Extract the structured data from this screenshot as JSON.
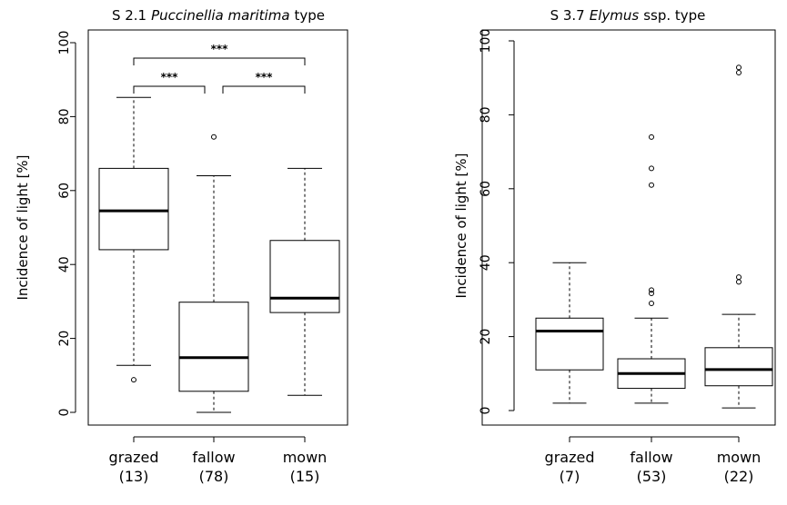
{
  "chart_data": [
    {
      "type": "box",
      "title": {
        "prefix": "S 2.1",
        "taxon": "Puccinellia maritima",
        "suffix": "type"
      },
      "ylabel": "Incidence of light [%]",
      "ylim": [
        0,
        100
      ],
      "yticks": [
        "0",
        "20",
        "40",
        "60",
        "80",
        "100"
      ],
      "categories": [
        "grazed",
        "fallow",
        "mown"
      ],
      "counts": [
        "(13)",
        "(78)",
        "(15)"
      ],
      "boxes": [
        {
          "whisker_low": 12.7,
          "q1": 44,
          "median": 54.5,
          "q3": 66,
          "whisker_high": 85.2,
          "outliers": [
            8.8
          ]
        },
        {
          "whisker_low": 0,
          "q1": 5.7,
          "median": 14.8,
          "q3": 29.8,
          "whisker_high": 64,
          "outliers": [
            74.5
          ]
        },
        {
          "whisker_low": 4.6,
          "q1": 27,
          "median": 30.9,
          "q3": 46.5,
          "whisker_high": 66,
          "outliers": []
        }
      ],
      "significance": [
        {
          "from": 0,
          "to": 2,
          "level": 1,
          "label": "***"
        },
        {
          "from": 0,
          "to": 1,
          "level": 0,
          "label": "***"
        },
        {
          "from": 1,
          "to": 2,
          "level": 0,
          "label": "***"
        }
      ]
    },
    {
      "type": "box",
      "title": {
        "prefix": "S 3.7",
        "taxon": "Elymus",
        "suffix": "ssp. type"
      },
      "ylabel": "Incidence of light [%]",
      "ylim": [
        0,
        100
      ],
      "yticks": [
        "0",
        "20",
        "40",
        "60",
        "80",
        "100"
      ],
      "categories": [
        "grazed",
        "fallow",
        "mown"
      ],
      "counts": [
        "(7)",
        "(53)",
        "(22)"
      ],
      "boxes": [
        {
          "whisker_low": 2,
          "q1": 11,
          "median": 21.5,
          "q3": 25,
          "whisker_high": 40,
          "outliers": []
        },
        {
          "whisker_low": 2,
          "q1": 6,
          "median": 10,
          "q3": 14,
          "whisker_high": 25,
          "outliers": [
            29,
            31.7,
            32.6,
            61,
            65.5,
            74
          ]
        },
        {
          "whisker_low": 0.7,
          "q1": 6.7,
          "median": 11.1,
          "q3": 17,
          "whisker_high": 26,
          "outliers": [
            34.8,
            36.1,
            91.4,
            92.8
          ]
        }
      ],
      "significance": []
    }
  ]
}
